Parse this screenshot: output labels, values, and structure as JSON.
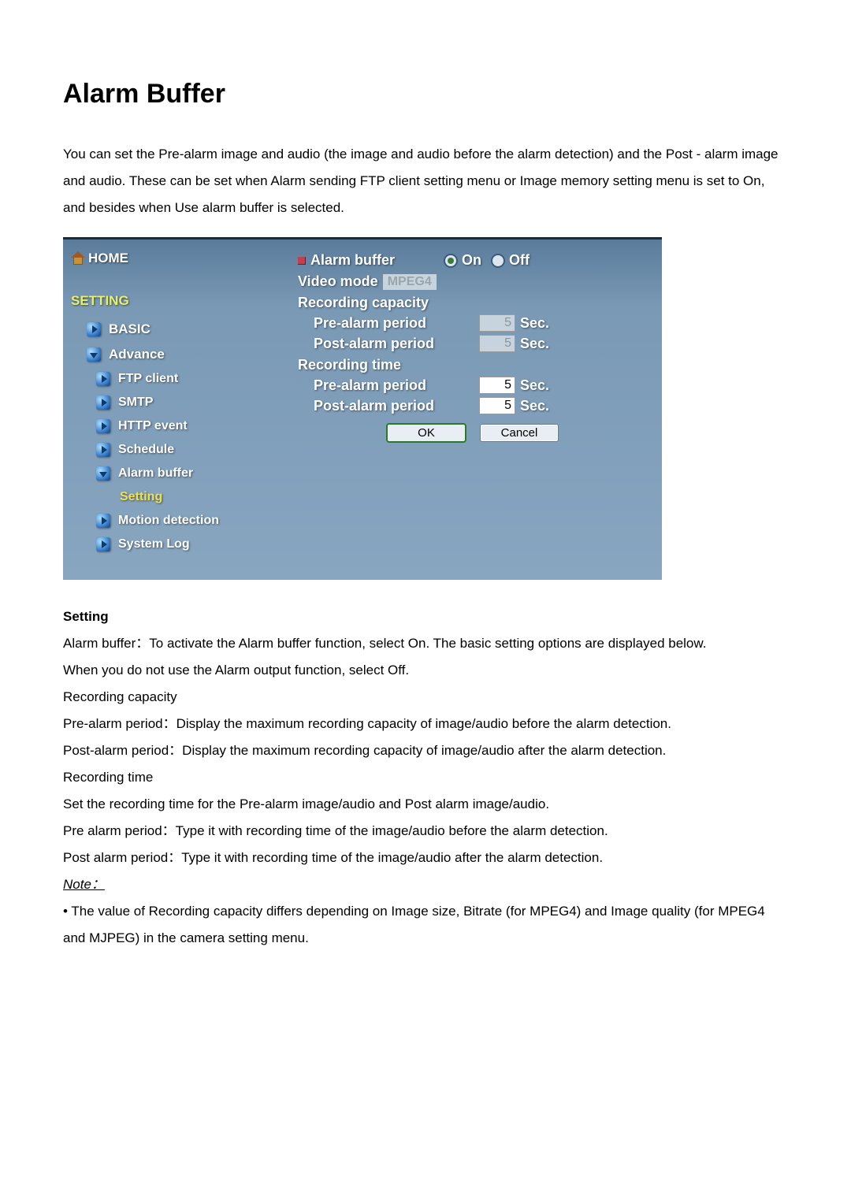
{
  "page": {
    "title": "Alarm Buffer",
    "intro": "You can set the Pre-alarm image and audio (the image and audio before the alarm detection) and the Post - alarm image and audio. These can be set when Alarm sending FTP client setting menu or Image memory setting menu is set to On, and besides when Use alarm buffer is selected."
  },
  "sidebar": {
    "home": "HOME",
    "setting_header": "SETTING",
    "items": [
      {
        "label": "BASIC",
        "indent": 1,
        "dir": "right"
      },
      {
        "label": "Advance",
        "indent": 1,
        "dir": "down"
      },
      {
        "label": "FTP client",
        "indent": 2,
        "dir": "right"
      },
      {
        "label": "SMTP",
        "indent": 2,
        "dir": "right"
      },
      {
        "label": "HTTP event",
        "indent": 2,
        "dir": "right"
      },
      {
        "label": "Schedule",
        "indent": 2,
        "dir": "right"
      },
      {
        "label": "Alarm buffer",
        "indent": 2,
        "dir": "down"
      },
      {
        "label": "Setting",
        "indent": 3,
        "dir": "none",
        "highlight": true
      },
      {
        "label": "Motion detection",
        "indent": 2,
        "dir": "right"
      },
      {
        "label": "System Log",
        "indent": 2,
        "dir": "right"
      }
    ]
  },
  "panel": {
    "alarm_buffer_label": "Alarm buffer",
    "on_label": "On",
    "off_label": "Off",
    "selected": "on",
    "video_mode_label": "Video mode",
    "video_mode_value": "MPEG4",
    "recording_capacity": {
      "header": "Recording capacity",
      "pre_label": "Pre-alarm period",
      "pre_value": "5",
      "post_label": "Post-alarm period",
      "post_value": "5",
      "unit": "Sec.",
      "readonly": true
    },
    "recording_time": {
      "header": "Recording time",
      "pre_label": "Pre-alarm period",
      "pre_value": "5",
      "post_label": "Post-alarm period",
      "post_value": "5",
      "unit": "Sec.",
      "readonly": false
    },
    "ok": "OK",
    "cancel": "Cancel"
  },
  "desc": {
    "setting_header": "Setting",
    "l1": "Alarm buffer：To activate the Alarm buffer function, select On. The basic setting options are displayed below.",
    "l2": "When you do not use the Alarm output function, select Off.",
    "l3": "Recording capacity",
    "l4": "Pre-alarm period：Display the maximum recording capacity of image/audio before the alarm detection.",
    "l5": "Post-alarm period：Display the maximum recording capacity of image/audio after the alarm detection.",
    "l6": "Recording time",
    "l7": "Set the recording time for the Pre-alarm image/audio and Post alarm image/audio.",
    "l8": "Pre alarm period：Type it with recording time of the image/audio before the alarm detection.",
    "l9": "Post alarm period：Type it with recording time of the image/audio after the alarm detection.",
    "note_label": "Note：",
    "note_body": "• The value of Recording capacity differs depending on Image size, Bitrate (for MPEG4) and Image quality (for MPEG4 and MJPEG) in the camera setting menu."
  },
  "style": {
    "accent_yellow": "#e8f068",
    "panel_bg_top": "#5a7c9b",
    "panel_bg_bot": "#88a6c0",
    "radio_checked": "#3a7a3a"
  }
}
